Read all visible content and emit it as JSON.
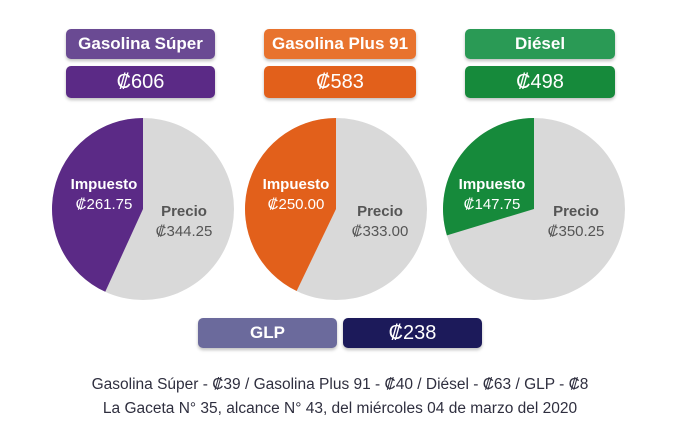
{
  "chart_data": [
    {
      "type": "pie",
      "title": "Gasolina Súper",
      "total": "₡606",
      "categories": [
        "Impuesto",
        "Precio"
      ],
      "values": [
        261.75,
        344.25
      ],
      "value_labels": [
        "₡261.75",
        "₡344.25"
      ],
      "colors": [
        "#5b2a86",
        "#d9d9d9"
      ]
    },
    {
      "type": "pie",
      "title": "Gasolina Plus 91",
      "total": "₡583",
      "categories": [
        "Impuesto",
        "Precio"
      ],
      "values": [
        250.0,
        333.0
      ],
      "value_labels": [
        "₡250.00",
        "₡333.00"
      ],
      "colors": [
        "#e2601b",
        "#d9d9d9"
      ]
    },
    {
      "type": "pie",
      "title": "Diésel",
      "total": "₡498",
      "categories": [
        "Impuesto",
        "Precio"
      ],
      "values": [
        147.75,
        350.25
      ],
      "value_labels": [
        "₡147.75",
        "₡350.25"
      ],
      "colors": [
        "#168a3b",
        "#d9d9d9"
      ]
    }
  ],
  "cards": [
    {
      "name": "Gasolina Súper",
      "name_color": "#6a4a93",
      "price_color": "#5b2a86"
    },
    {
      "name": "Gasolina Plus 91",
      "name_color": "#e8732e",
      "price_color": "#e2601b"
    },
    {
      "name": "Diésel",
      "name_color": "#2a9a55",
      "price_color": "#168a3b"
    }
  ],
  "glp": {
    "label": "GLP",
    "price": "₡238",
    "label_color": "#6b6a9c",
    "price_color": "#1c1a5a"
  },
  "footer": {
    "line1": "Gasolina Súper - ₡39 / Gasolina Plus 91 - ₡40 / Diésel - ₡63 / GLP - ₡8",
    "line2": "La Gaceta N° 35, alcance N° 43, del miércoles 04 de marzo del 2020"
  }
}
